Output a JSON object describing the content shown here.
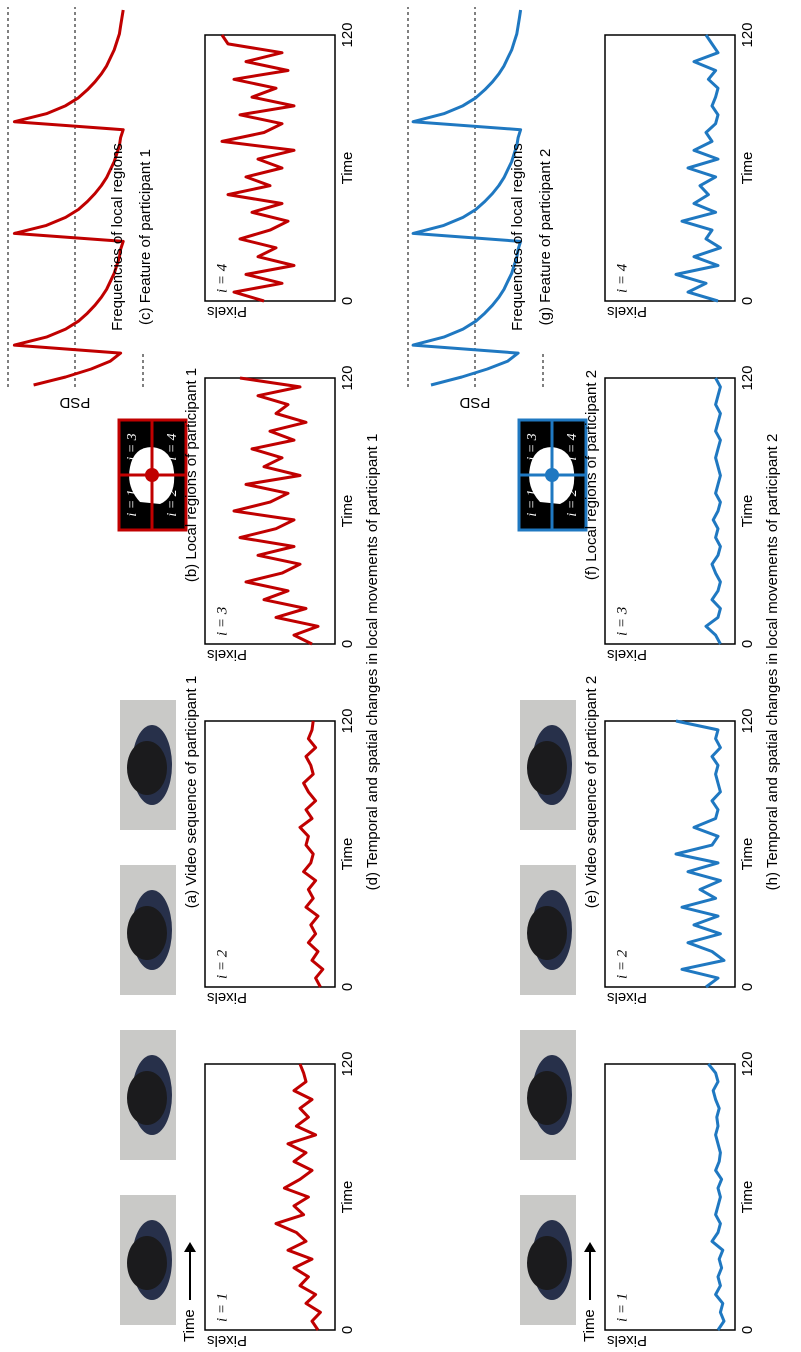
{
  "participants": [
    {
      "time_arrow": "Time",
      "video_caption": "(a) Video sequence of participant 1",
      "regions_caption": "(b) Local regions of participant 1",
      "region_labels": [
        "i = 1",
        "i = 2",
        "i = 3",
        "i = 4"
      ],
      "color": "#c00000",
      "psd": {
        "type": "line",
        "ylabel": "PSD",
        "xlabel": "Frequencies of local regions",
        "caption": "(c) Feature of participant 1",
        "ylim": [
          0,
          100
        ],
        "values": [
          80,
          55,
          35,
          20,
          12,
          95,
          70,
          55,
          45,
          38,
          32,
          27,
          23,
          20,
          17,
          15,
          13,
          12,
          10,
          95,
          70,
          55,
          45,
          38,
          32,
          27,
          23,
          20,
          17,
          15,
          13,
          12,
          10,
          95,
          70,
          55,
          45,
          38,
          32,
          27,
          23,
          20,
          17,
          15,
          13,
          12,
          11,
          10
        ]
      },
      "movement": {
        "type": "line",
        "caption": "(d) Temporal and spatial changes in local movements of participant 1",
        "xlabel": "Time",
        "ylabel": "Pixels",
        "xlim": [
          0,
          120
        ],
        "xticks": [
          0,
          120
        ],
        "ylim": [
          0,
          100
        ],
        "x": [
          0,
          4,
          8,
          12,
          16,
          20,
          24,
          28,
          32,
          36,
          40,
          44,
          48,
          52,
          56,
          60,
          64,
          68,
          72,
          76,
          80,
          84,
          88,
          92,
          96,
          100,
          104,
          108,
          112,
          116,
          120
        ],
        "panels": [
          {
            "values": [
              10,
              15,
              8,
              20,
              12,
              25,
              18,
              30,
              15,
              35,
              20,
              28,
              45,
              22,
              30,
              18,
              38,
              25,
              15,
              30,
              20,
              35,
              12,
              28,
              18,
              25,
              15,
              30,
              20,
              22,
              25
            ]
          },
          {
            "values": [
              8,
              12,
              6,
              15,
              10,
              18,
              12,
              16,
              10,
              20,
              14,
              18,
              12,
              22,
              16,
              14,
              20,
              18,
              25,
              15,
              20,
              12,
              18,
              22,
              14,
              16,
              20,
              12,
              18,
              15,
              14
            ]
          },
          {
            "values": [
              15,
              30,
              10,
              45,
              20,
              55,
              35,
              70,
              40,
              25,
              60,
              30,
              75,
              45,
              30,
              80,
              50,
              35,
              70,
              25,
              55,
              40,
              65,
              30,
              50,
              20,
              45,
              35,
              60,
              25,
              75
            ]
          },
          {
            "values": [
              55,
              80,
              40,
              70,
              30,
              60,
              45,
              75,
              50,
              35,
              65,
              40,
              85,
              50,
              70,
              40,
              60,
              30,
              90,
              55,
              40,
              75,
              30,
              65,
              45,
              80,
              35,
              70,
              40,
              85,
              90
            ]
          }
        ]
      }
    },
    {
      "time_arrow": "Time",
      "video_caption": "(e) Video sequence of participant 2",
      "regions_caption": "(f) Local regions of participant 2",
      "region_labels": [
        "i = 1",
        "i = 2",
        "i = 3",
        "i = 4"
      ],
      "color": "#1f78c1",
      "psd": {
        "type": "line",
        "ylabel": "PSD",
        "xlabel": "Frequencies of local regions",
        "caption": "(g) Feature of participant 2",
        "ylim": [
          0,
          100
        ],
        "values": [
          82,
          58,
          38,
          22,
          14,
          96,
          72,
          57,
          47,
          40,
          34,
          29,
          25,
          22,
          19,
          17,
          15,
          14,
          12,
          96,
          72,
          57,
          47,
          40,
          34,
          29,
          25,
          22,
          19,
          17,
          15,
          14,
          12,
          96,
          72,
          57,
          47,
          40,
          34,
          29,
          25,
          22,
          19,
          17,
          15,
          14,
          13,
          12
        ]
      },
      "movement": {
        "type": "line",
        "caption": "(h) Temporal and spatial changes in local movements of participant 2",
        "xlabel": "Time",
        "ylabel": "Pixels",
        "xlim": [
          0,
          120
        ],
        "xticks": [
          0,
          120
        ],
        "ylim": [
          0,
          100
        ],
        "x": [
          0,
          4,
          8,
          12,
          16,
          20,
          24,
          28,
          32,
          36,
          40,
          44,
          48,
          52,
          56,
          60,
          64,
          68,
          72,
          76,
          80,
          84,
          88,
          92,
          96,
          100,
          104,
          108,
          112,
          116,
          120
        ],
        "panels": [
          {
            "values": [
              10,
              5,
              8,
              6,
              12,
              8,
              10,
              7,
              9,
              6,
              15,
              10,
              8,
              12,
              10,
              8,
              10,
              7,
              12,
              9,
              8,
              10,
              12,
              10,
              11,
              9,
              12,
              14,
              10,
              12,
              18
            ]
          },
          {
            "values": [
              20,
              10,
              40,
              5,
              15,
              35,
              8,
              30,
              10,
              40,
              12,
              25,
              8,
              35,
              10,
              45,
              15,
              10,
              30,
              12,
              10,
              15,
              8,
              10,
              12,
              10,
              15,
              8,
              12,
              10,
              45
            ]
          },
          {
            "values": [
              8,
              12,
              20,
              10,
              8,
              15,
              10,
              8,
              12,
              15,
              10,
              8,
              12,
              10,
              14,
              10,
              8,
              12,
              10,
              8,
              10,
              12,
              10,
              8,
              12,
              10,
              8,
              12,
              10,
              8,
              12
            ]
          },
          {
            "values": [
              10,
              35,
              20,
              45,
              10,
              30,
              8,
              20,
              15,
              40,
              12,
              30,
              18,
              25,
              12,
              35,
              10,
              30,
              15,
              20,
              12,
              10,
              15,
              12,
              10,
              18,
              12,
              30,
              10,
              15,
              20
            ]
          }
        ]
      }
    }
  ]
}
